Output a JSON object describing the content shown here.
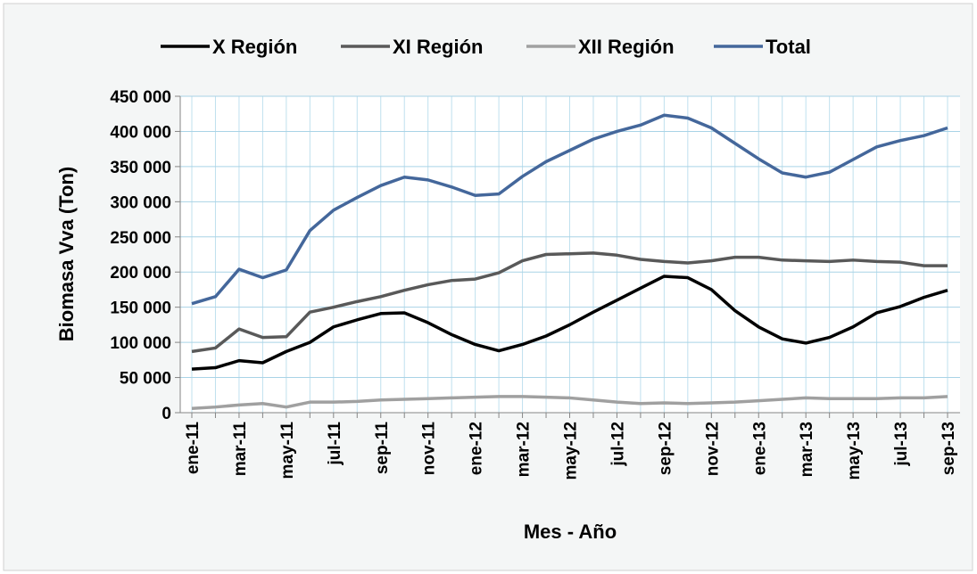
{
  "chart_data": {
    "type": "line",
    "categories": [
      "ene-11",
      null,
      "mar-11",
      null,
      "may-11",
      null,
      "jul-11",
      null,
      "sep-11",
      null,
      "nov-11",
      null,
      "ene-12",
      null,
      "mar-12",
      null,
      "may-12",
      null,
      "jul-12",
      null,
      "sep-12",
      null,
      "nov-12",
      null,
      "ene-13",
      null,
      "mar-13",
      null,
      "may-13",
      null,
      "jul-13",
      null,
      "sep-13"
    ],
    "series": [
      {
        "name": "X Región",
        "color": "#000000",
        "values": [
          62000,
          64000,
          74000,
          71000,
          87000,
          100000,
          122000,
          132000,
          141000,
          142000,
          128000,
          111000,
          97000,
          88000,
          97000,
          109000,
          125000,
          143000,
          160000,
          177000,
          194000,
          192000,
          175000,
          145000,
          122000,
          105000,
          99000,
          107000,
          122000,
          142000,
          151000,
          164000,
          174000
        ]
      },
      {
        "name": "XI Región",
        "color": "#595959",
        "values": [
          87000,
          92000,
          119000,
          107000,
          108000,
          143000,
          150000,
          158000,
          165000,
          174000,
          182000,
          188000,
          190000,
          199000,
          216000,
          225000,
          226000,
          227000,
          224000,
          218000,
          215000,
          213000,
          216000,
          221000,
          221000,
          217000,
          216000,
          215000,
          217000,
          215000,
          214000,
          209000,
          209000
        ]
      },
      {
        "name": "XII Región",
        "color": "#a0a0a0",
        "values": [
          6000,
          8000,
          11000,
          13000,
          8000,
          15000,
          15000,
          16000,
          18000,
          19000,
          20000,
          21000,
          22000,
          23000,
          23000,
          22000,
          21000,
          18000,
          15000,
          13000,
          14000,
          13000,
          14000,
          15000,
          17000,
          19000,
          21000,
          20000,
          20000,
          20000,
          21000,
          21000,
          23000
        ]
      },
      {
        "name": "Total",
        "color": "#44679b",
        "values": [
          155000,
          165000,
          204000,
          192000,
          203000,
          259000,
          288000,
          306000,
          323000,
          335000,
          331000,
          321000,
          309000,
          311000,
          336000,
          357000,
          373000,
          389000,
          400000,
          409000,
          423000,
          419000,
          405000,
          383000,
          361000,
          341000,
          335000,
          342000,
          360000,
          378000,
          387000,
          394000,
          405000
        ]
      }
    ],
    "ylim": [
      0,
      450000
    ],
    "yticks": [
      0,
      {
        "value": 50000,
        "label": "50 000"
      },
      {
        "value": 100000,
        "label": "100 000"
      },
      {
        "value": 150000,
        "label": "150 000"
      },
      {
        "value": 200000,
        "label": "200 000"
      },
      {
        "value": 250000,
        "label": "250 000"
      },
      {
        "value": 300000,
        "label": "300 000"
      },
      {
        "value": 350000,
        "label": "350 000"
      },
      {
        "value": 400000,
        "label": "400 000"
      },
      {
        "value": 450000,
        "label": "450 000"
      }
    ],
    "y_label": "Biomasa Vva (Ton)",
    "x_label": "Mes - Año",
    "grid": true,
    "legend": "top"
  }
}
